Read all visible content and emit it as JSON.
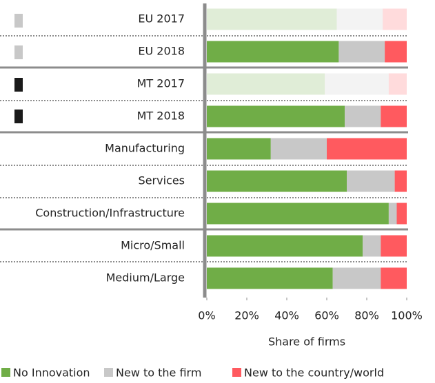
{
  "chart_data": {
    "type": "stacked_barh",
    "categories": [
      "EU 2017",
      "EU 2018",
      "MT  2017",
      "MT  2018",
      "Manufacturing",
      "Services",
      "Construction/Infrastructure",
      "Micro/Small",
      "Medium/Large"
    ],
    "series": [
      {
        "name": "No Innovation",
        "color": "#70ad47",
        "values": [
          65,
          66,
          59,
          69,
          32,
          70,
          91,
          78,
          63
        ]
      },
      {
        "name": "New to the firm",
        "color": "#c8c8c8",
        "values": [
          23,
          23,
          32,
          18,
          28,
          24,
          4,
          9,
          24
        ]
      },
      {
        "name": "New to the country/world",
        "color": "#ff5a5f",
        "values": [
          12,
          11,
          9,
          13,
          40,
          6,
          5,
          13,
          13
        ]
      }
    ],
    "faded": [
      true,
      false,
      true,
      false,
      false,
      false,
      false,
      false,
      false
    ],
    "xlim": [
      0,
      100
    ],
    "xticks": [
      {
        "value": 0,
        "label": "0%"
      },
      {
        "value": 20,
        "label": "20%"
      },
      {
        "value": 40,
        "label": "40%"
      },
      {
        "value": 60,
        "label": "60%"
      },
      {
        "value": 80,
        "label": "80%"
      },
      {
        "value": 100,
        "label": "100%"
      }
    ],
    "xlabel": "Share of firms",
    "legend": "bottom"
  }
}
